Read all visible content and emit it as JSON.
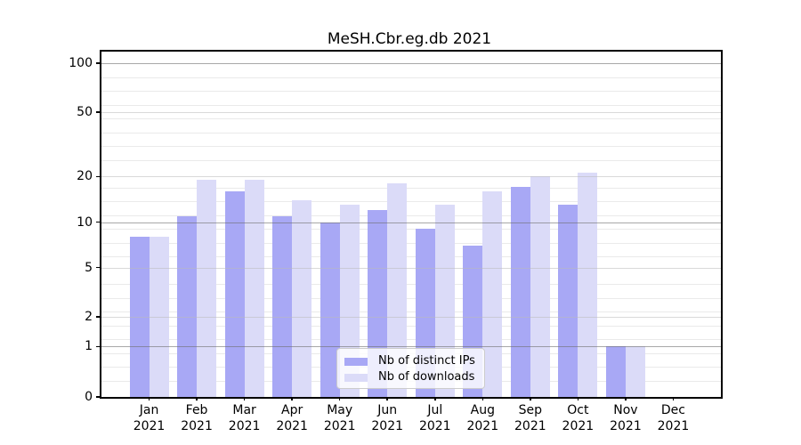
{
  "title": "MeSH.Cbr.eg.db 2021",
  "chart_data": {
    "type": "bar",
    "title": "MeSH.Cbr.eg.db 2021",
    "categories": [
      "Jan",
      "Feb",
      "Mar",
      "Apr",
      "May",
      "Jun",
      "Jul",
      "Aug",
      "Sep",
      "Oct",
      "Nov",
      "Dec"
    ],
    "year_label": "2021",
    "series": [
      {
        "name": "Nb of distinct IPs",
        "color": "#a8a8f5",
        "values": [
          8,
          11,
          16,
          11,
          10,
          12,
          9,
          7,
          17,
          13,
          1,
          0
        ]
      },
      {
        "name": "Nb of downloads",
        "color": "#dbdbf8",
        "values": [
          8,
          19,
          19,
          14,
          13,
          18,
          13,
          16,
          20,
          21,
          1,
          0
        ]
      }
    ],
    "yticks": [
      0,
      1,
      2,
      5,
      10,
      20,
      50,
      100
    ],
    "ytick_labels": [
      "0",
      "1",
      "2",
      "5",
      "10",
      "20",
      "50",
      "100"
    ],
    "scale": "log (with 0 baseline)",
    "ylim": [
      0,
      118
    ],
    "grid": "on",
    "legend_position": "lower center",
    "colors": {
      "bar_dark": "#a8a8f5",
      "bar_light": "#dbdbf8",
      "grid_major": "#a8a8a8",
      "grid_mid": "#dcdcdc",
      "grid_minor": "#ededed",
      "axis": "#000000",
      "legend_border": "#cccccc"
    }
  }
}
